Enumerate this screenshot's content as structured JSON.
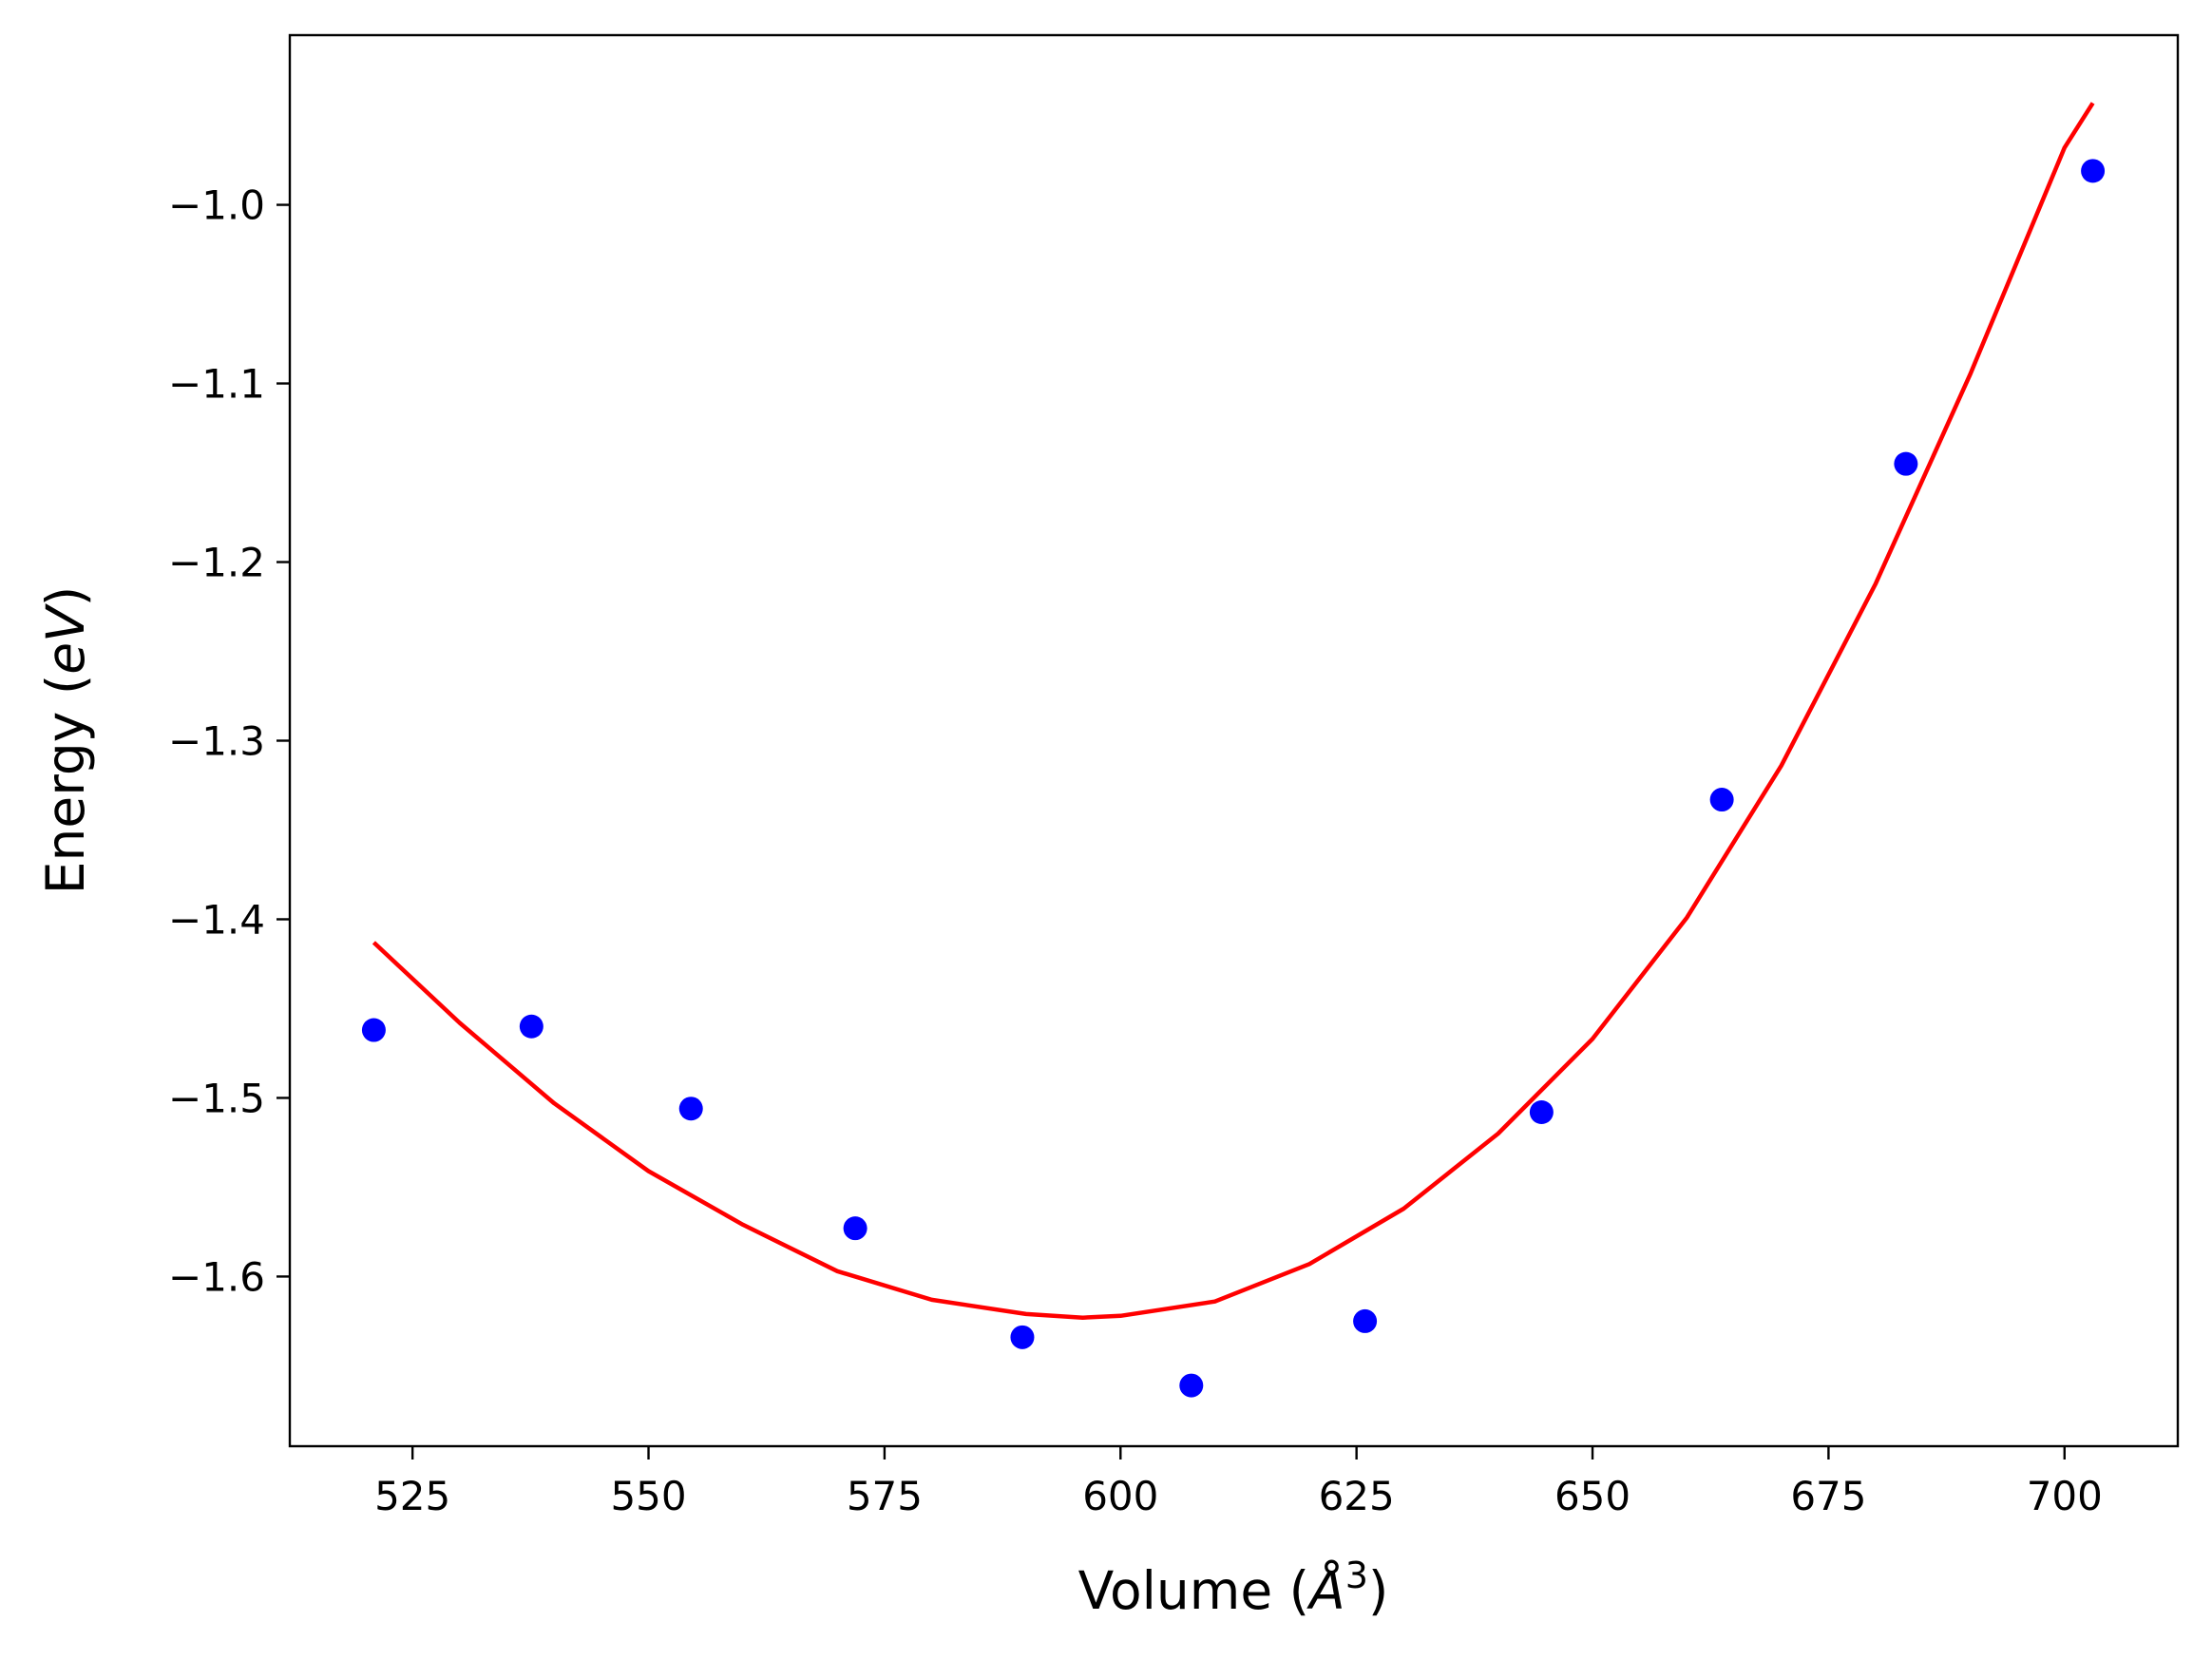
{
  "chart_data": {
    "type": "scatter",
    "xlabel": "Volume (Å 3)",
    "ylabel": "Energy (eV)",
    "xlim": [
      512,
      712
    ],
    "ylim": [
      -1.695,
      -0.905
    ],
    "x_ticks": [
      525,
      550,
      575,
      600,
      625,
      650,
      675,
      700
    ],
    "y_ticks": [
      -1.6,
      -1.5,
      -1.4,
      -1.3,
      -1.2,
      -1.1,
      -1.0
    ],
    "x_tick_labels": [
      "525",
      "550",
      "575",
      "600",
      "625",
      "650",
      "675",
      "700"
    ],
    "y_tick_labels": [
      "−1.6",
      "−1.5",
      "−1.4",
      "−1.3",
      "−1.2",
      "−1.1",
      "−1.0"
    ],
    "grid": false,
    "series": [
      {
        "kind": "scatter",
        "color": "#0000ff",
        "x": [
          520.9,
          537.6,
          554.5,
          571.9,
          589.6,
          607.5,
          625.9,
          644.6,
          663.7,
          683.2,
          703.0
        ],
        "y": [
          -1.462,
          -1.46,
          -1.506,
          -1.573,
          -1.634,
          -1.661,
          -1.625,
          -1.508,
          -1.333,
          -1.145,
          -0.981
        ]
      },
      {
        "kind": "line",
        "color": "#ff0000",
        "x": [
          520.9,
          530,
          540,
          550,
          560,
          570,
          580,
          590,
          596,
          600,
          610,
          620,
          630,
          640,
          650,
          660,
          670,
          680,
          690,
          700,
          703.0
        ],
        "y": [
          -1.413,
          -1.458,
          -1.503,
          -1.541,
          -1.571,
          -1.597,
          -1.613,
          -1.621,
          -1.623,
          -1.622,
          -1.614,
          -1.593,
          -1.562,
          -1.52,
          -1.467,
          -1.399,
          -1.314,
          -1.212,
          -1.095,
          -0.968,
          -0.943
        ]
      }
    ]
  },
  "axis_title_parts": {
    "x_prefix": "Volume (",
    "x_symbol": "Å",
    "x_exp": "3",
    "x_suffix": ")",
    "y_prefix": "Energy (",
    "y_unit": "eV",
    "y_suffix": ")"
  }
}
